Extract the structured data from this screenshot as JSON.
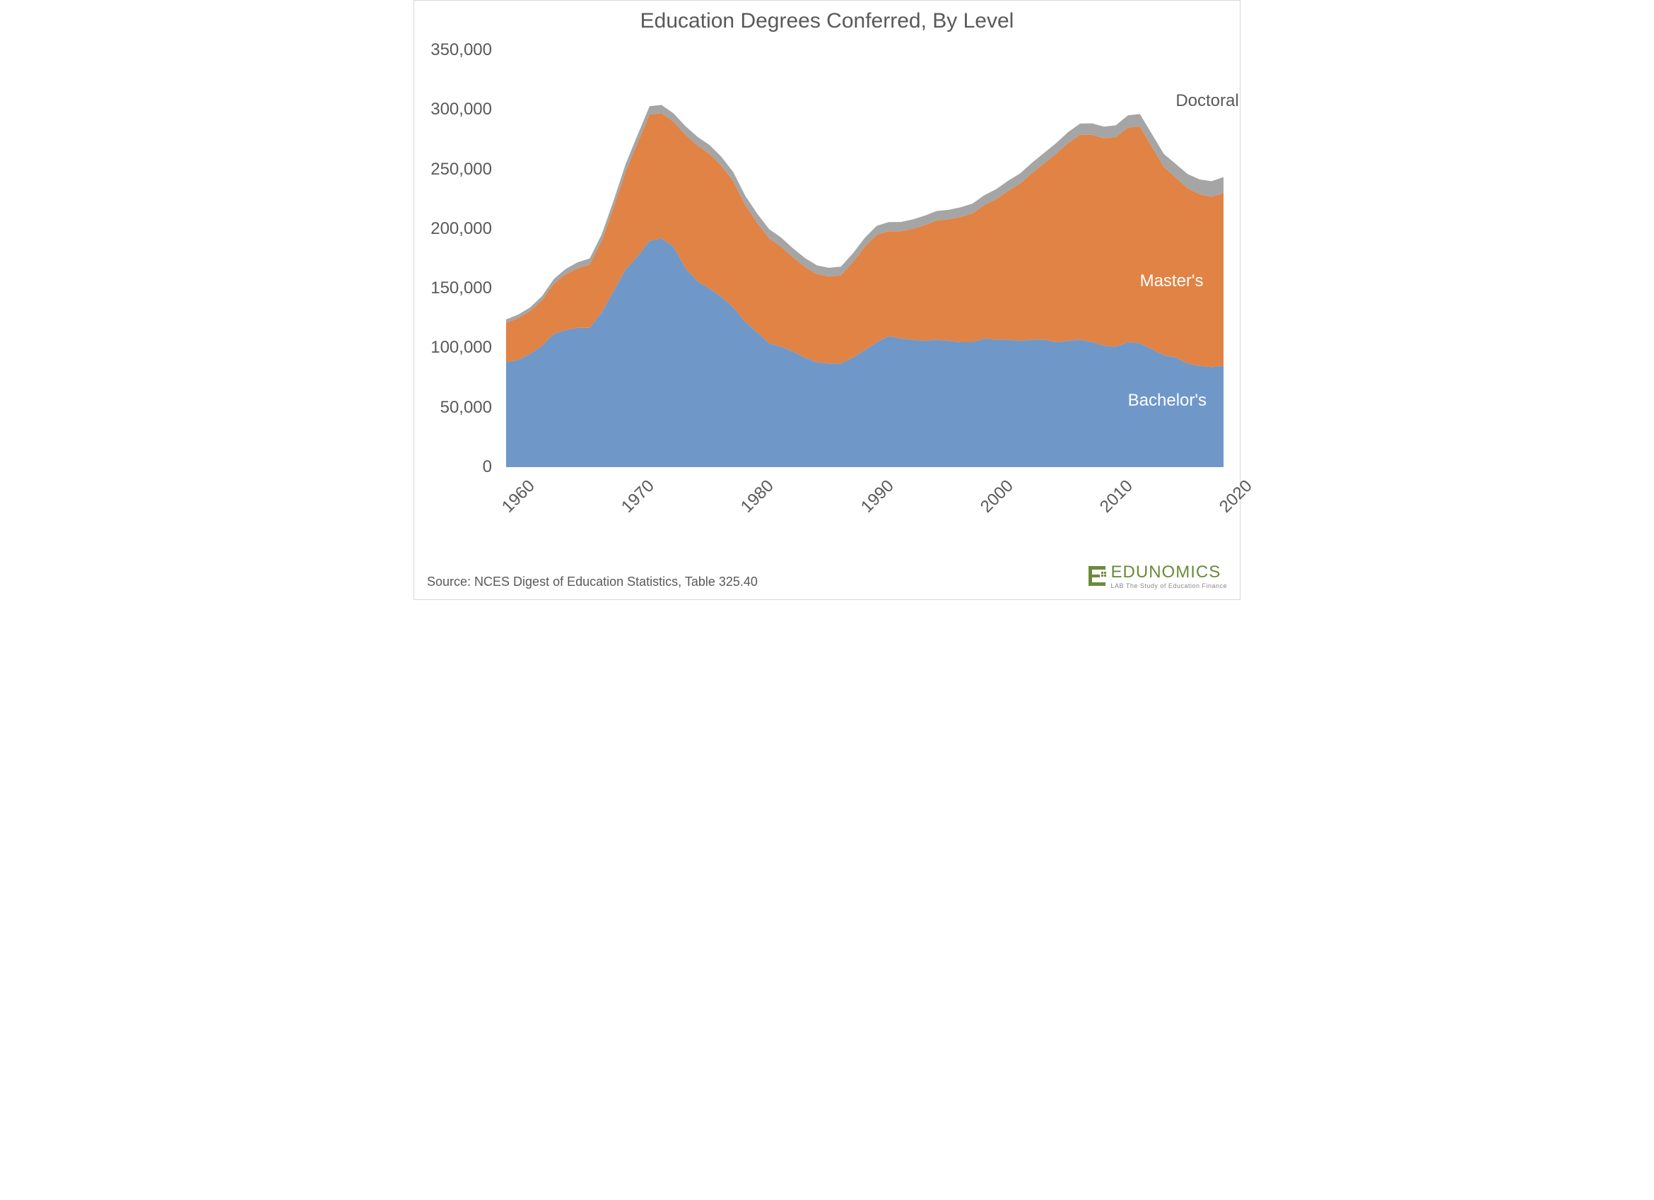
{
  "title": "Education Degrees Conferred, By Level",
  "source_line": "Source: NCES Digest of Education Statistics, Table 325.40",
  "logo": {
    "brand": "EDUNOMICS",
    "sub1": "LAB",
    "sub2": "The Study of Education Finance"
  },
  "chart": {
    "type": "stacked-area",
    "background_color": "#ffffff",
    "border_color": "#d9d9d9",
    "title_fontsize": 30,
    "title_color": "#595959",
    "axis_label_fontsize": 24,
    "axis_label_color": "#595959",
    "x": {
      "min": 1960,
      "max": 2020,
      "ticks": [
        1960,
        1970,
        1980,
        1990,
        2000,
        2010,
        2020
      ],
      "tick_rotation_deg": -45
    },
    "y": {
      "min": 0,
      "max": 350000,
      "ticks": [
        0,
        50000,
        100000,
        150000,
        200000,
        250000,
        300000,
        350000
      ],
      "tick_format": "comma"
    },
    "years": [
      1960,
      1961,
      1962,
      1963,
      1964,
      1965,
      1966,
      1967,
      1968,
      1969,
      1970,
      1971,
      1972,
      1973,
      1974,
      1975,
      1976,
      1977,
      1978,
      1979,
      1980,
      1981,
      1982,
      1983,
      1984,
      1985,
      1986,
      1987,
      1988,
      1989,
      1990,
      1991,
      1992,
      1993,
      1994,
      1995,
      1996,
      1997,
      1998,
      1999,
      2000,
      2001,
      2002,
      2003,
      2004,
      2005,
      2006,
      2007,
      2008,
      2009,
      2010,
      2011,
      2012,
      2013,
      2014,
      2015,
      2016,
      2017,
      2018,
      2019,
      2020
    ],
    "series": [
      {
        "name": "Bachelor's",
        "color": "#6f98c9",
        "label_color": "#ffffff",
        "label_x": 2012,
        "label_y": 56000,
        "values": [
          88000,
          90000,
          95000,
          102000,
          112000,
          115000,
          117000,
          117000,
          130000,
          148000,
          166000,
          177000,
          190000,
          192000,
          185000,
          167000,
          156000,
          150000,
          143000,
          134000,
          122000,
          113000,
          104000,
          101000,
          97000,
          92000,
          88000,
          87000,
          87000,
          92000,
          98000,
          105000,
          110000,
          108000,
          107000,
          106000,
          107000,
          106000,
          105000,
          105000,
          108000,
          107000,
          107000,
          106000,
          107000,
          107000,
          105000,
          106000,
          107000,
          105000,
          102000,
          101000,
          105000,
          104000,
          99000,
          94000,
          92000,
          87000,
          85000,
          84000,
          85000
        ]
      },
      {
        "name": "Master's",
        "color": "#e08345",
        "label_color": "#ffffff",
        "label_x": 2013,
        "label_y": 156000,
        "values": [
          33000,
          35000,
          36000,
          38000,
          42000,
          47000,
          50000,
          53000,
          60000,
          70000,
          82000,
          95000,
          106000,
          105000,
          105000,
          112000,
          114000,
          113000,
          110000,
          106000,
          98000,
          92000,
          88000,
          84000,
          79000,
          76000,
          74000,
          73000,
          74000,
          80000,
          87000,
          90000,
          88000,
          90000,
          93000,
          97000,
          100000,
          102000,
          105000,
          108000,
          112000,
          118000,
          125000,
          132000,
          140000,
          148000,
          158000,
          166000,
          172000,
          174000,
          174000,
          176000,
          180000,
          182000,
          170000,
          158000,
          151000,
          147000,
          144000,
          143000,
          145000
        ]
      },
      {
        "name": "Doctoral",
        "color": "#a5a5a5",
        "label_color": "#595959",
        "label_x": 2016,
        "label_y": 307000,
        "values": [
          3000,
          3000,
          3000,
          3500,
          4000,
          4500,
          5000,
          5200,
          5500,
          6000,
          6500,
          7000,
          7000,
          7000,
          7000,
          7200,
          7300,
          7500,
          7600,
          7700,
          7800,
          7800,
          7800,
          7700,
          7600,
          7500,
          7400,
          7300,
          7300,
          7400,
          7500,
          7600,
          7700,
          7800,
          7900,
          8000,
          8000,
          8000,
          8100,
          8200,
          8300,
          8400,
          8500,
          8600,
          8700,
          8800,
          9000,
          9200,
          9400,
          9600,
          9800,
          10000,
          10300,
          10500,
          10800,
          11000,
          11500,
          12000,
          12500,
          13000,
          13500
        ]
      }
    ]
  }
}
